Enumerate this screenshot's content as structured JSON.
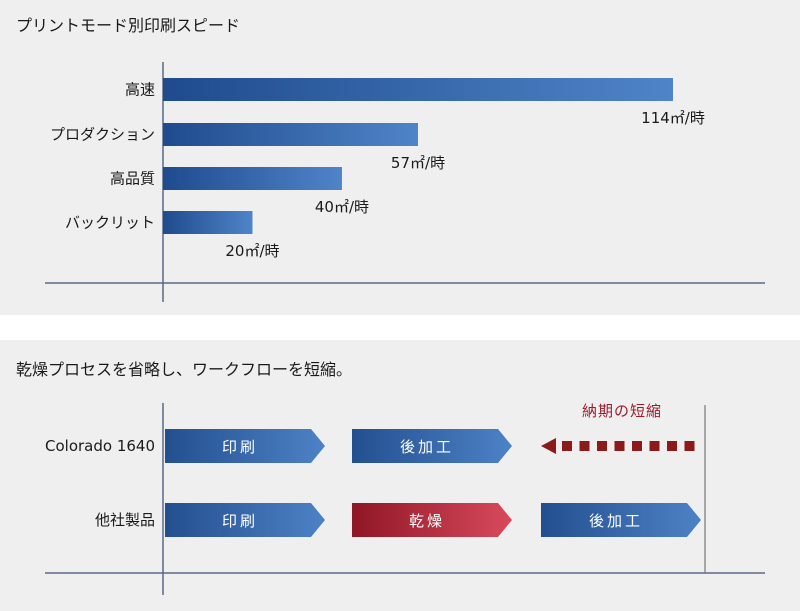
{
  "chart_data": [
    {
      "type": "bar",
      "orientation": "horizontal",
      "title": "プリントモード別印刷スピード",
      "categories": [
        "高速",
        "プロダクション",
        "高品質",
        "バックリット"
      ],
      "values": [
        114,
        57,
        40,
        20
      ],
      "data_labels": [
        "114㎡/時",
        "57㎡/時",
        "40㎡/時",
        "20㎡/時"
      ],
      "unit": "㎡/時",
      "xlim": [
        0,
        114
      ],
      "grid": false,
      "colors": {
        "bar_start": "#1f4b8e",
        "bar_end": "#4a7fc4"
      }
    },
    {
      "type": "diagram",
      "title": "乾燥プロセスを省略し、ワークフローを短縮。",
      "rows": [
        {
          "label": "Colorado 1640",
          "steps": [
            {
              "label": "印刷",
              "color": "blue"
            },
            {
              "label": "後加工",
              "color": "blue"
            }
          ],
          "note": "納期の短縮"
        },
        {
          "label": "他社製品",
          "steps": [
            {
              "label": "印刷",
              "color": "blue"
            },
            {
              "label": "乾燥",
              "color": "red"
            },
            {
              "label": "後加工",
              "color": "blue"
            }
          ]
        }
      ],
      "colors": {
        "blue": "#2e5e9e",
        "red": "#b3263a",
        "note": "#9b1c2c",
        "dash": "#8b1a1a"
      }
    }
  ]
}
